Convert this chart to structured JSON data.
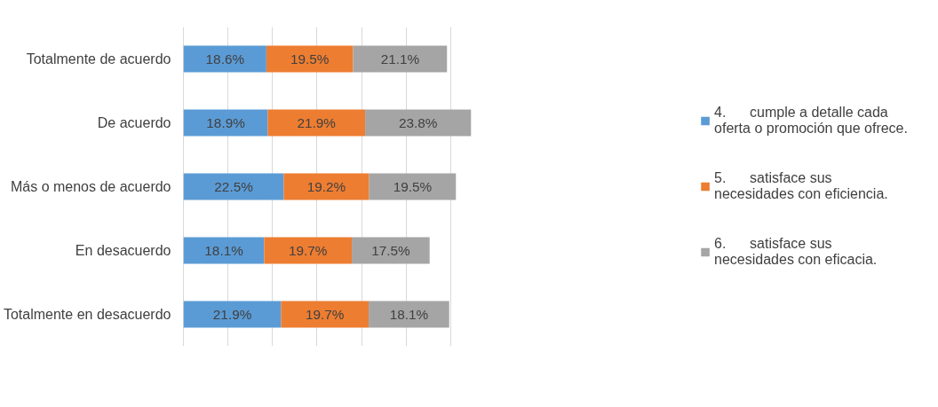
{
  "chart_data": {
    "type": "bar",
    "orientation": "horizontal",
    "stacked": true,
    "categories": [
      "Totalmente de acuerdo",
      "De acuerdo",
      "Más o menos de acuerdo",
      "En desacuerdo",
      "Totalmente en desacuerdo"
    ],
    "series": [
      {
        "name": "4.      cumple a detalle cada oferta o promoción que ofrece.",
        "color": "#5b9bd5",
        "values": [
          18.6,
          18.9,
          22.5,
          18.1,
          21.9
        ],
        "value_labels": [
          "18.6%",
          "18.9%",
          "22.5%",
          "18.1%",
          "21.9%"
        ]
      },
      {
        "name": "5.      satisface sus necesidades con eficiencia.",
        "color": "#ed7d31",
        "values": [
          19.5,
          21.9,
          19.2,
          19.7,
          19.7
        ],
        "value_labels": [
          "19.5%",
          "21.9%",
          "19.2%",
          "19.7%",
          "19.7%"
        ]
      },
      {
        "name": "6.      satisface sus necesidades con eficacia.",
        "color": "#a5a5a5",
        "values": [
          21.1,
          23.8,
          19.5,
          17.5,
          18.1
        ],
        "value_labels": [
          "21.1%",
          "23.8%",
          "19.5%",
          "17.5%",
          "18.1%"
        ]
      }
    ],
    "tick_labels": "y",
    "grid": "x",
    "legend": "right"
  }
}
